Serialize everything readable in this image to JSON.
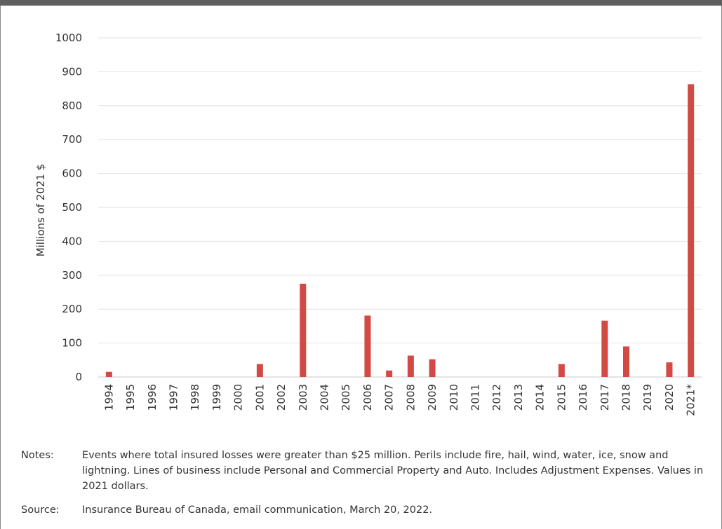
{
  "chart_data": {
    "type": "bar",
    "ylabel": "Millions of 2021 $",
    "xlabel": "",
    "ylim": [
      0,
      1000
    ],
    "yticks": [
      0,
      100,
      200,
      300,
      400,
      500,
      600,
      700,
      800,
      900,
      1000
    ],
    "grid": true,
    "bar_color": "#d24a43",
    "categories": [
      "1994",
      "1995",
      "1996",
      "1997",
      "1998",
      "1999",
      "2000",
      "2001",
      "2002",
      "2003",
      "2004",
      "2005",
      "2006",
      "2007",
      "2008",
      "2009",
      "2010",
      "2011",
      "2012",
      "2013",
      "2014",
      "2015",
      "2016",
      "2017",
      "2018",
      "2019",
      "2020",
      "2021*"
    ],
    "values": [
      15,
      0,
      0,
      0,
      0,
      0,
      0,
      38,
      0,
      275,
      0,
      0,
      181,
      19,
      63,
      52,
      0,
      0,
      0,
      0,
      0,
      38,
      0,
      166,
      90,
      0,
      43,
      863
    ]
  },
  "notes": {
    "label": "Notes:",
    "text": "Events where total insured losses were greater than $25 million. Perils include fire, hail, wind, water, ice, snow and lightning. Lines of business include Personal and Commercial Property and Auto. Includes Adjustment Expenses. Values in 2021 dollars."
  },
  "source": {
    "label": "Source:",
    "text": "Insurance Bureau of Canada, email communication, March 20, 2022."
  }
}
